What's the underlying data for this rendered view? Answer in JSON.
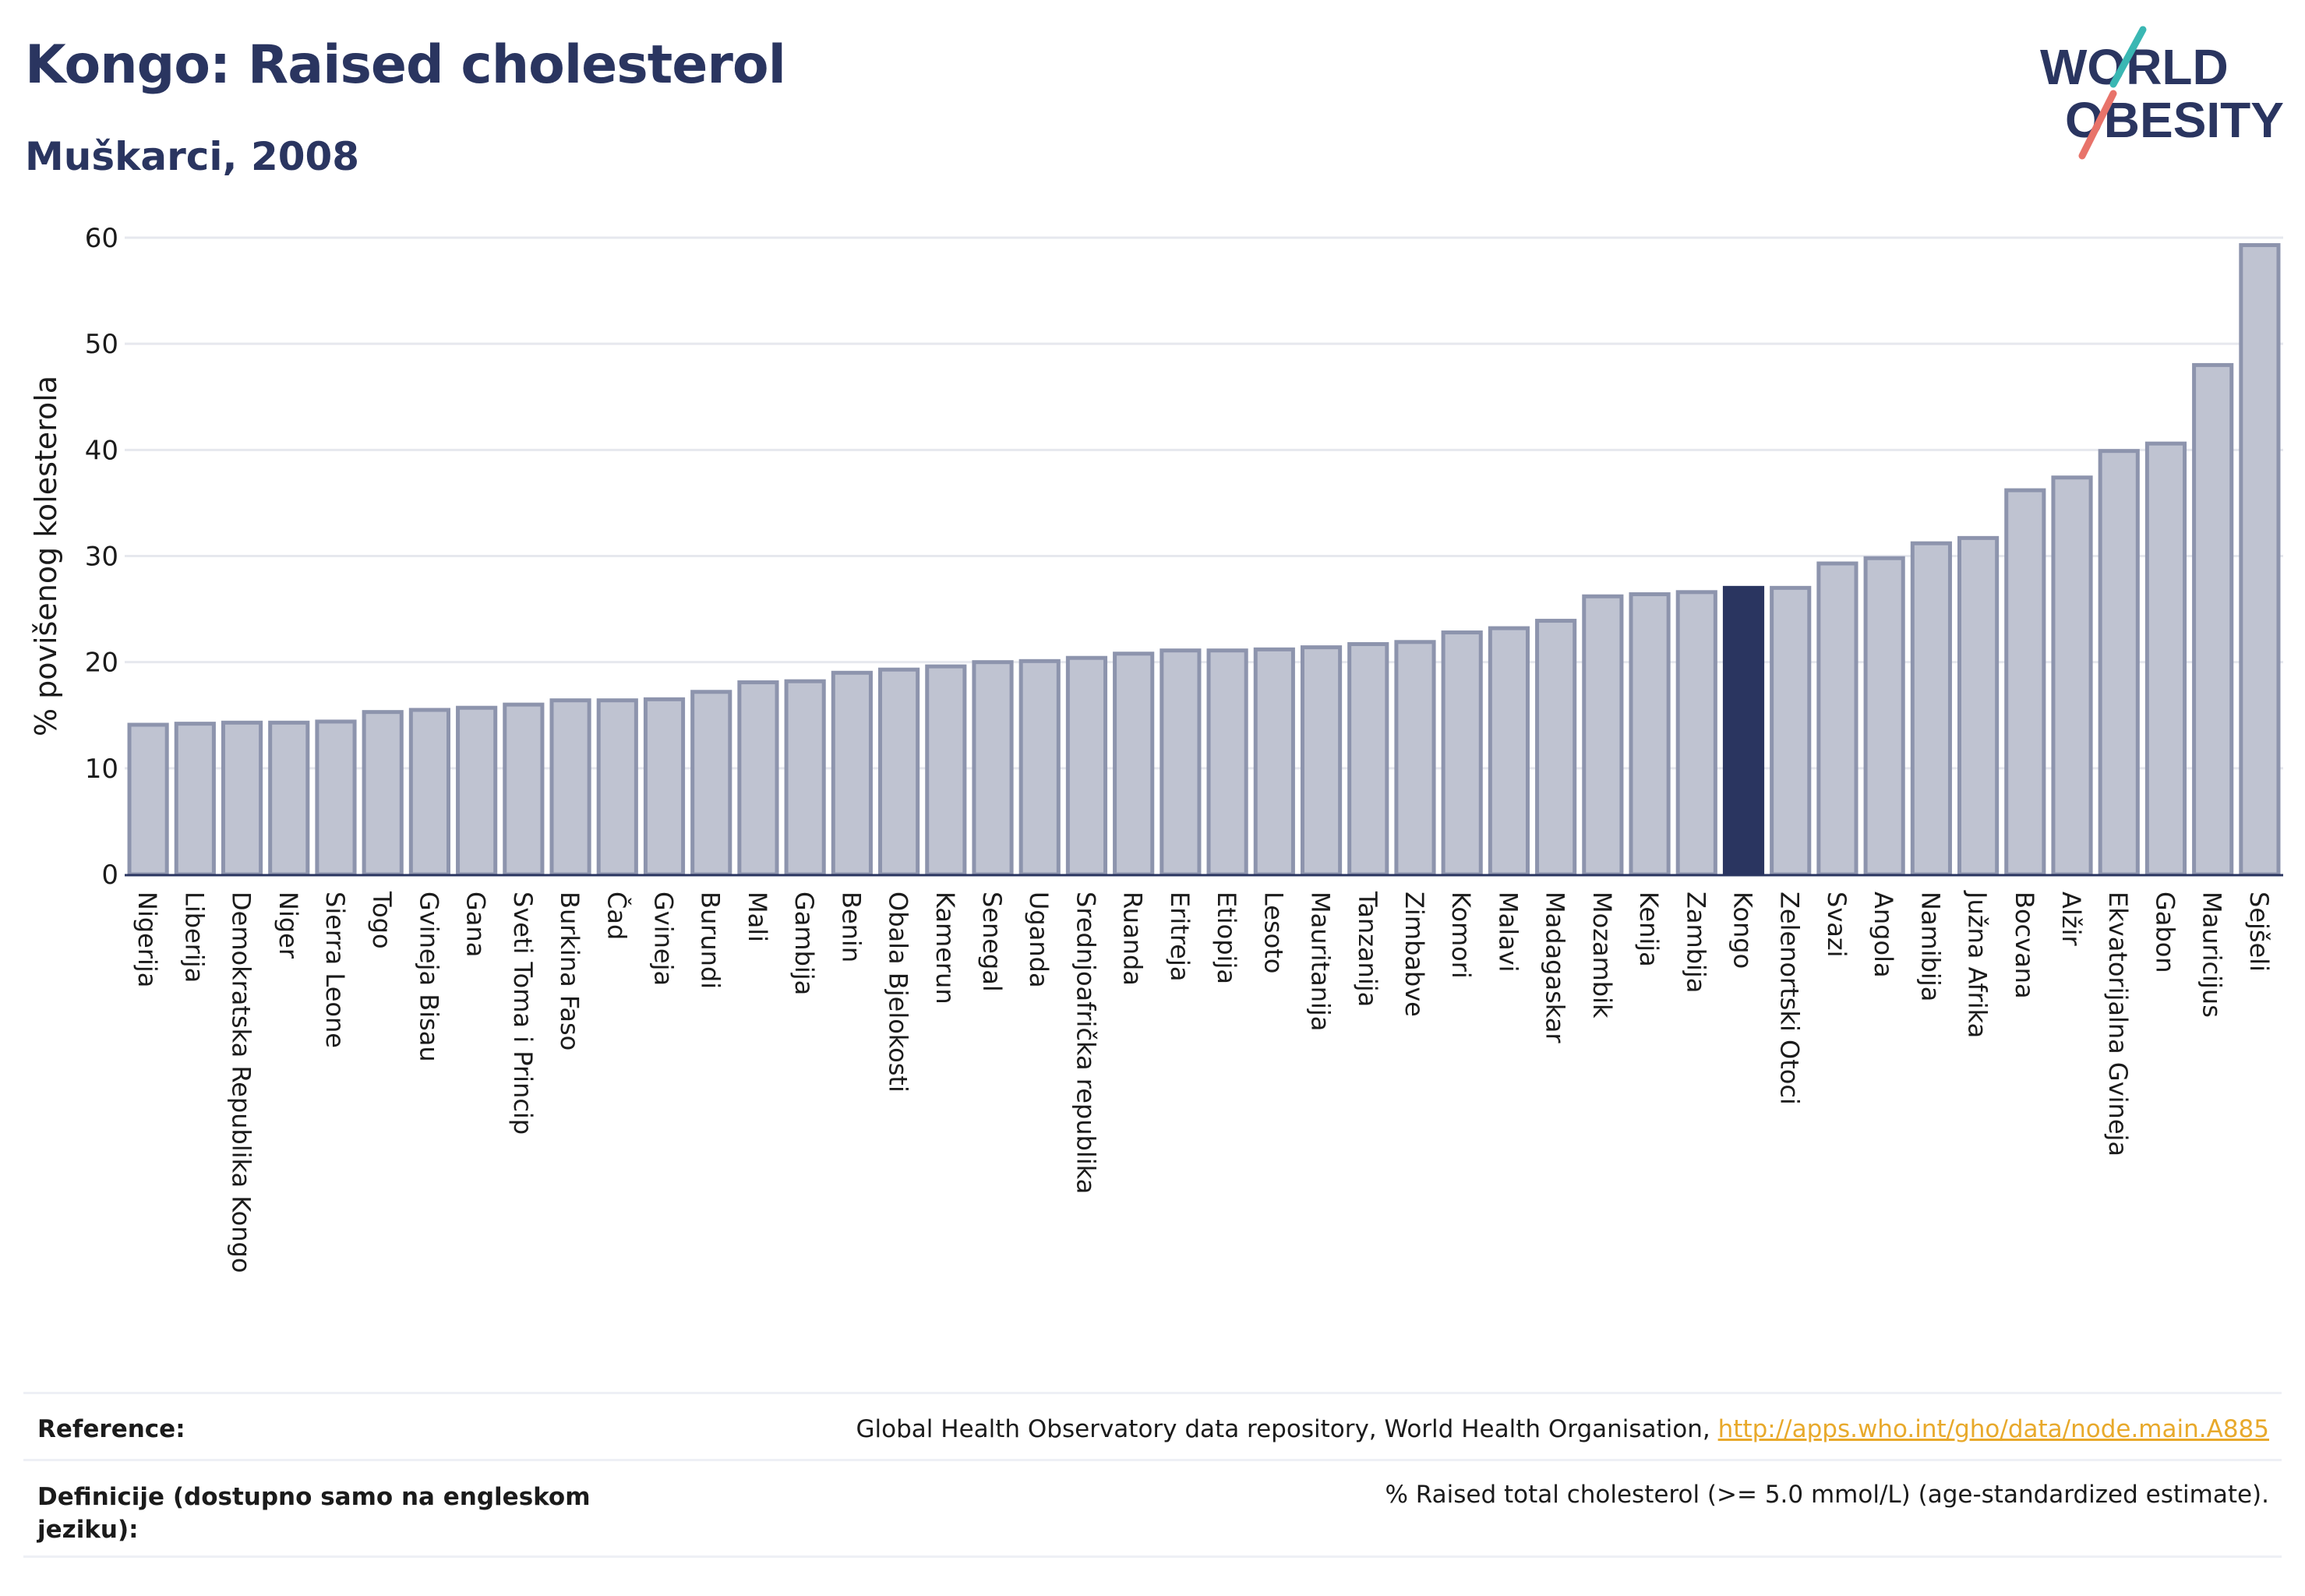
{
  "header": {
    "title": "Kongo: Raised cholesterol",
    "subtitle": "Muškarci, 2008"
  },
  "logo": {
    "line1": "WORLD",
    "line2": "OBESITY"
  },
  "colors": {
    "bar": "#bfc3d1",
    "bar_border": "#8d94ad",
    "highlight": "#2a3560",
    "grid": "#e6e8ee",
    "axis": "#2a3560",
    "link": "#e8a92b"
  },
  "chart_data": {
    "type": "bar",
    "title": "Kongo: Raised cholesterol",
    "subtitle": "Muškarci, 2008",
    "ylabel": "% povišenog kolesterola",
    "xlabel": "",
    "ylim": [
      0,
      60
    ],
    "yticks": [
      0,
      10,
      20,
      30,
      40,
      50,
      60
    ],
    "grid": true,
    "highlight": "Kongo",
    "categories": [
      "Nigerija",
      "Liberija",
      "Demokratska Republika Kongo",
      "Niger",
      "Sierra Leone",
      "Togo",
      "Gvineja Bisau",
      "Gana",
      "Sveti Toma i Princip",
      "Burkina Faso",
      "Čad",
      "Gvineja",
      "Burundi",
      "Mali",
      "Gambija",
      "Benin",
      "Obala Bjelokosti",
      "Kamerun",
      "Senegal",
      "Uganda",
      "Srednjoafrička republika",
      "Ruanda",
      "Eritreja",
      "Etiopija",
      "Lesoto",
      "Mauritanija",
      "Tanzanija",
      "Zimbabve",
      "Komori",
      "Malavi",
      "Madagaskar",
      "Mozambik",
      "Kenija",
      "Zambija",
      "Kongo",
      "Zelenortski Otoci",
      "Svazi",
      "Angola",
      "Namibija",
      "Južna Afrika",
      "Bocvana",
      "Alžir",
      "Ekvatorijalna Gvineja",
      "Gabon",
      "Mauricijus",
      "Sejšeli"
    ],
    "values": [
      14.1,
      14.2,
      14.3,
      14.3,
      14.4,
      15.3,
      15.5,
      15.7,
      16.0,
      16.4,
      16.4,
      16.5,
      17.2,
      18.1,
      18.2,
      19.0,
      19.3,
      19.6,
      20.0,
      20.1,
      20.4,
      20.8,
      21.1,
      21.1,
      21.2,
      21.4,
      21.7,
      21.9,
      22.8,
      23.2,
      23.9,
      26.2,
      26.4,
      26.6,
      27.0,
      27.0,
      29.3,
      29.8,
      31.2,
      31.7,
      36.2,
      37.4,
      39.9,
      40.6,
      48.0,
      59.3
    ]
  },
  "footer": {
    "reference_label": "Reference:",
    "reference_text": "Global Health Observatory data repository, World Health Organisation, ",
    "reference_link": "http://apps.who.int/gho/data/node.main.A885",
    "definition_label": "Definicije (dostupno samo na engleskom jeziku):",
    "definition_text": "% Raised total cholesterol (>= 5.0 mmol/L) (age-standardized estimate)."
  }
}
